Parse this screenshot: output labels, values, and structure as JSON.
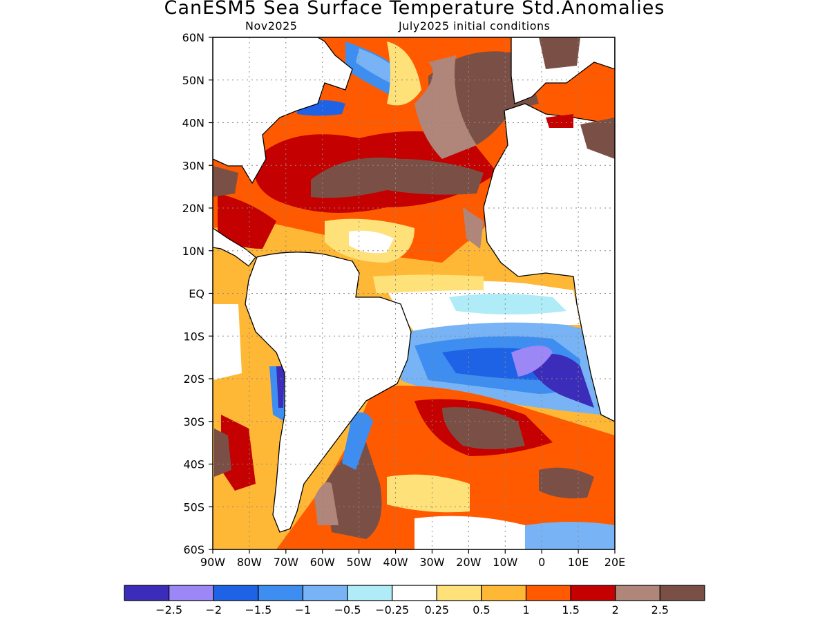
{
  "title": "CanESM5 Sea Surface Temperature Std.Anomalies",
  "subtitle_left": "Nov2025",
  "subtitle_right": "July2025 initial conditions",
  "map": {
    "lat_labels": [
      "60N",
      "50N",
      "40N",
      "30N",
      "20N",
      "10N",
      "EQ",
      "10S",
      "20S",
      "30S",
      "40S",
      "50S",
      "60S"
    ],
    "lon_labels": [
      "90W",
      "80W",
      "70W",
      "60W",
      "50W",
      "40W",
      "30W",
      "20W",
      "10W",
      "0",
      "10E",
      "20E"
    ]
  },
  "colorbar": {
    "colors": [
      "#3b2cba",
      "#9b87f5",
      "#1e63e6",
      "#3d8ef0",
      "#78b4f5",
      "#b0ecf7",
      "#ffffff",
      "#ffe17a",
      "#ffb836",
      "#ff5a00",
      "#c40000",
      "#b0857a",
      "#7a5046"
    ],
    "labels": [
      "−2.5",
      "−2",
      "−1.5",
      "−1",
      "−0.5",
      "−0.25",
      "0.25",
      "0.5",
      "1",
      "1.5",
      "2",
      "2.5"
    ]
  }
}
